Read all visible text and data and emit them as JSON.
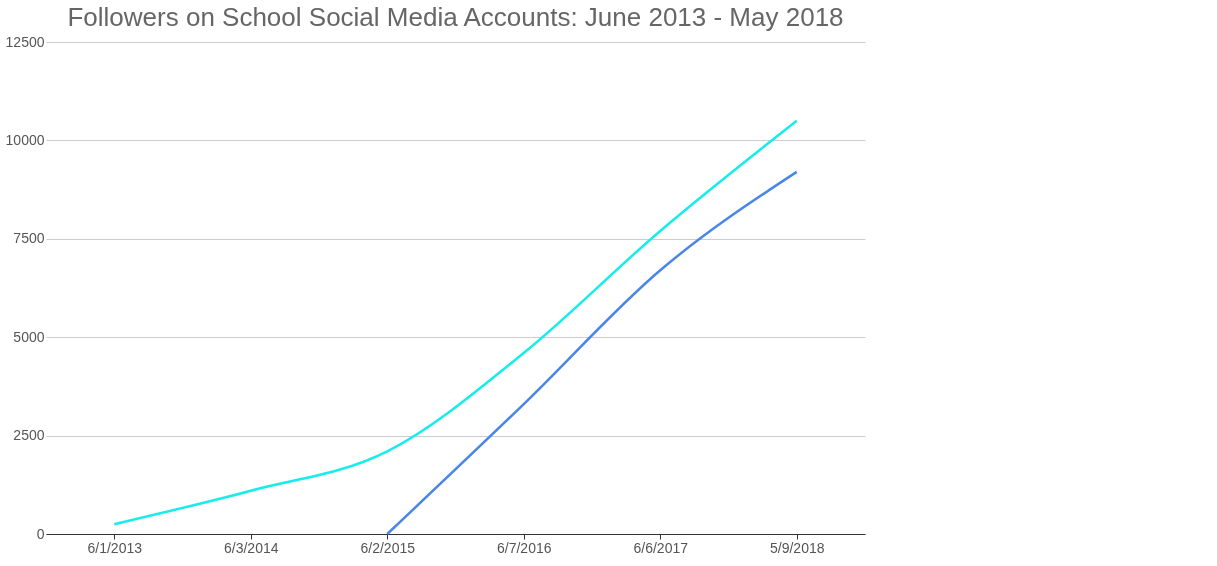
{
  "chart_data": {
    "type": "line",
    "title": "Followers on School Social Media Accounts: June 2013 - May 2018",
    "categories": [
      "6/1/2013",
      "6/3/2014",
      "6/2/2015",
      "6/7/2016",
      "6/6/2017",
      "5/9/2018"
    ],
    "series": [
      {
        "color": "#16ecec",
        "values": [
          250,
          1100,
          2100,
          4600,
          7700,
          10500
        ]
      },
      {
        "color": "#4a86e8",
        "values": [
          null,
          null,
          0,
          3300,
          6700,
          9200
        ]
      }
    ],
    "ylim": [
      0,
      12500
    ],
    "yticks": [
      0,
      2500,
      5000,
      7500,
      10000,
      12500
    ],
    "grid": "y",
    "marker": "none",
    "line_style": "solid"
  }
}
